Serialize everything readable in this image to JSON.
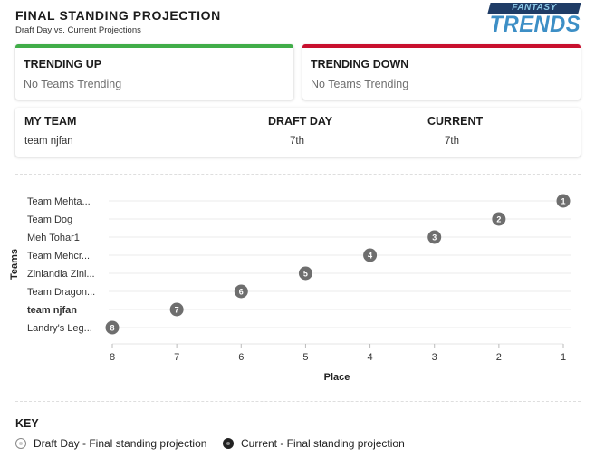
{
  "header": {
    "title": "FINAL STANDING PROJECTION",
    "subtitle": "Draft Day vs. Current Projections"
  },
  "logo": {
    "top_text": "FANTASY",
    "main_text": "TRENDS",
    "bar_color": "#1f3c66",
    "text_color": "#3d8fc6"
  },
  "trending_up": {
    "heading": "TRENDING UP",
    "empty_text": "No Teams Trending",
    "accent_color": "#41ad49"
  },
  "trending_down": {
    "heading": "TRENDING DOWN",
    "empty_text": "No Teams Trending",
    "accent_color": "#c8102e"
  },
  "my_team": {
    "col_team": "MY TEAM",
    "col_draft": "DRAFT DAY",
    "col_current": "CURRENT",
    "team_name": "team njfan",
    "draft_day": "7th",
    "current": "7th"
  },
  "chart_data": {
    "type": "scatter",
    "ylabel": "Teams",
    "xlabel": "Place",
    "categories": [
      "Team Mehta...",
      "Team Dog",
      "Meh Tohar1",
      "Team Mehcr...",
      "Zinlandia Zini...",
      "Team Dragon...",
      "team njfan",
      "Landry's Leg..."
    ],
    "highlight_category": "team njfan",
    "x_ticks": [
      8,
      7,
      6,
      5,
      4,
      3,
      2,
      1
    ],
    "x_reversed": true,
    "xlim": [
      1,
      8
    ],
    "series": [
      {
        "values": [
          1,
          2,
          3,
          4,
          5,
          6,
          7,
          8
        ]
      }
    ],
    "point_color": "#6e6e6e",
    "grid": true
  },
  "key": {
    "title": "KEY",
    "draft_label": "Draft Day - Final standing projection",
    "current_label": "Current - Final standing projection"
  }
}
